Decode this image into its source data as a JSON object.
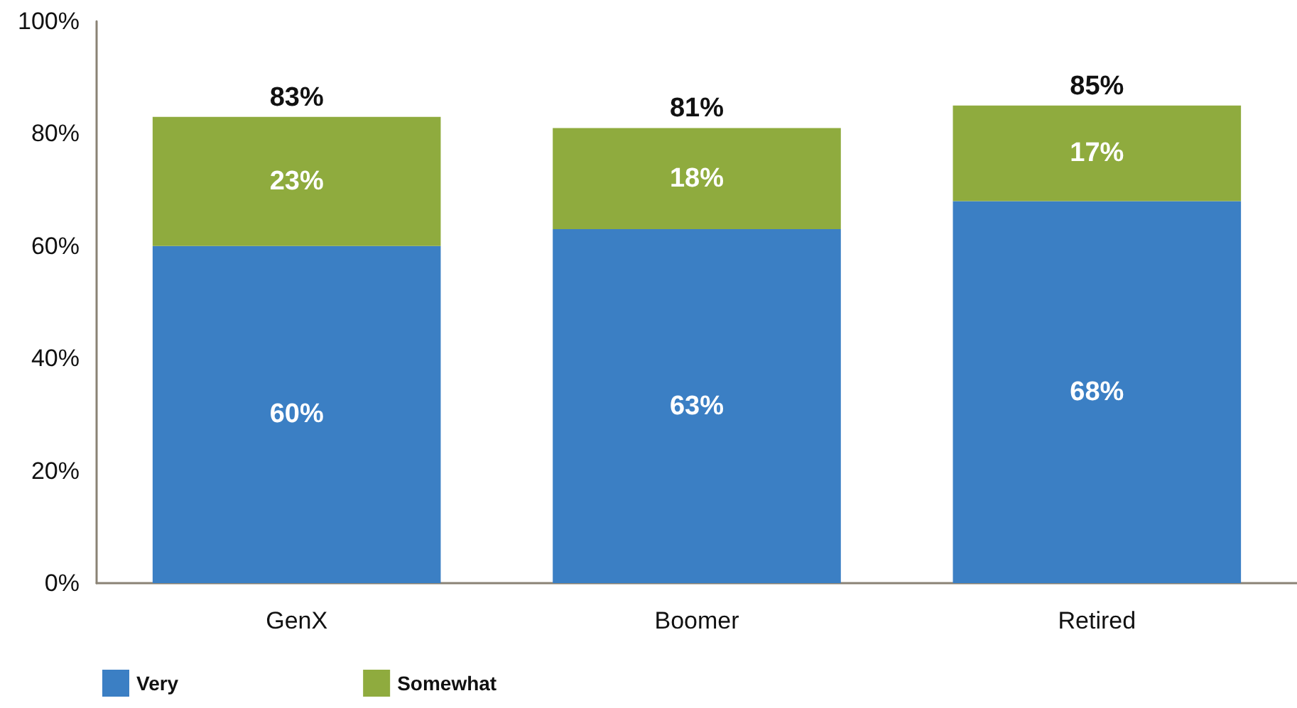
{
  "chart_data": {
    "type": "bar",
    "stacked": true,
    "categories": [
      "GenX",
      "Boomer",
      "Retired"
    ],
    "series": [
      {
        "name": "Very",
        "color": "#3b7fc4",
        "values": [
          60,
          63,
          68
        ],
        "value_labels": [
          "60%",
          "63%",
          "68%"
        ]
      },
      {
        "name": "Somewhat",
        "color": "#8fab3e",
        "values": [
          23,
          18,
          17
        ],
        "value_labels": [
          "23%",
          "18%",
          "17%"
        ]
      }
    ],
    "totals": [
      "83%",
      "81%",
      "85%"
    ],
    "ylim": [
      0,
      100
    ],
    "yticks": [
      {
        "value": 0,
        "label": "0%"
      },
      {
        "value": 20,
        "label": "20%"
      },
      {
        "value": 40,
        "label": "40%"
      },
      {
        "value": 60,
        "label": "60%"
      },
      {
        "value": 80,
        "label": "80%"
      },
      {
        "value": 100,
        "label": "100%"
      }
    ],
    "grid": false,
    "legend": "bottom left"
  }
}
